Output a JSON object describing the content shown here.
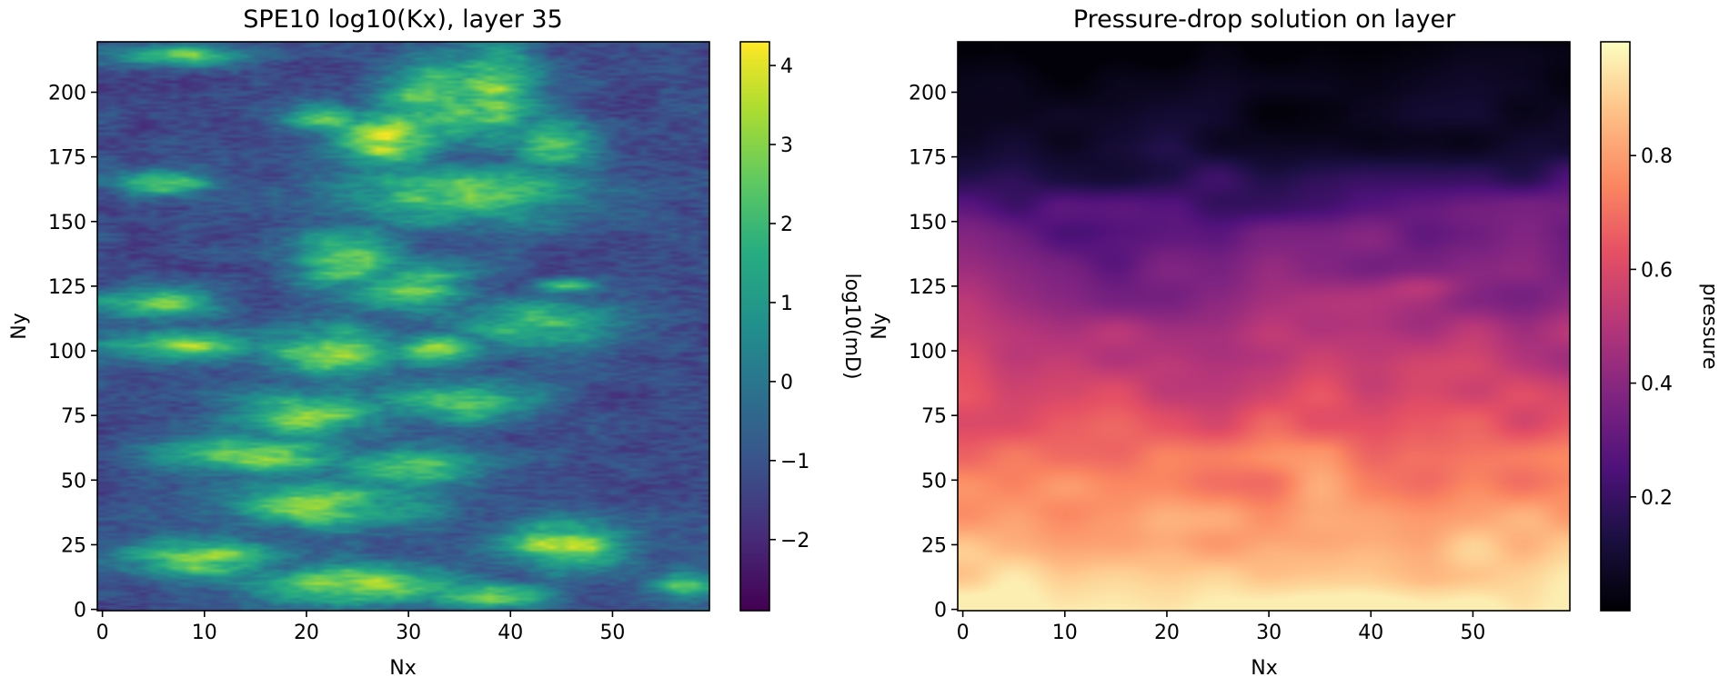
{
  "chart_data": [
    {
      "type": "heatmap",
      "title": "SPE10 log10(Kx), layer 35",
      "xlabel": "Nx",
      "ylabel": "Ny",
      "colorbar_label": "log10(mD)",
      "colormap": "viridis",
      "grid_shape": [
        220,
        60
      ],
      "xlim": [
        -0.5,
        59.5
      ],
      "ylim": [
        -0.5,
        219.5
      ],
      "x_ticks": [
        0,
        10,
        20,
        30,
        40,
        50
      ],
      "x_tick_labels": [
        "0",
        "10",
        "20",
        "30",
        "40",
        "50"
      ],
      "y_ticks": [
        0,
        25,
        50,
        75,
        100,
        125,
        150,
        175,
        200
      ],
      "y_tick_labels": [
        "0",
        "25",
        "50",
        "75",
        "100",
        "125",
        "150",
        "175",
        "200"
      ],
      "color_range": [
        -2.9,
        4.3
      ],
      "colorbar_ticks": [
        -2,
        -1,
        0,
        1,
        2,
        3,
        4
      ],
      "colorbar_tick_labels": [
        "−2",
        "−1",
        "0",
        "1",
        "2",
        "3",
        "4"
      ],
      "background_value": -1.2,
      "features": [
        {
          "x": 28,
          "y": 182,
          "peak": 4.2,
          "spread_x": 5,
          "spread_y": 12
        },
        {
          "x": 33,
          "y": 196,
          "peak": 3.2,
          "spread_x": 6,
          "spread_y": 16
        },
        {
          "x": 38,
          "y": 200,
          "peak": 2.9,
          "spread_x": 5,
          "spread_y": 20
        },
        {
          "x": 44,
          "y": 180,
          "peak": 2.8,
          "spread_x": 4,
          "spread_y": 10
        },
        {
          "x": 22,
          "y": 190,
          "peak": 2.7,
          "spread_x": 4,
          "spread_y": 6
        },
        {
          "x": 6,
          "y": 165,
          "peak": 2.6,
          "spread_x": 5,
          "spread_y": 5
        },
        {
          "x": 35,
          "y": 160,
          "peak": 2.5,
          "spread_x": 12,
          "spread_y": 12
        },
        {
          "x": 24,
          "y": 135,
          "peak": 3.0,
          "spread_x": 5,
          "spread_y": 12
        },
        {
          "x": 30,
          "y": 125,
          "peak": 2.6,
          "spread_x": 6,
          "spread_y": 10
        },
        {
          "x": 5,
          "y": 118,
          "peak": 2.6,
          "spread_x": 6,
          "spread_y": 6
        },
        {
          "x": 8,
          "y": 102,
          "peak": 2.8,
          "spread_x": 8,
          "spread_y": 6
        },
        {
          "x": 22,
          "y": 100,
          "peak": 2.9,
          "spread_x": 7,
          "spread_y": 10
        },
        {
          "x": 33,
          "y": 100,
          "peak": 3.1,
          "spread_x": 5,
          "spread_y": 6
        },
        {
          "x": 42,
          "y": 110,
          "peak": 2.3,
          "spread_x": 8,
          "spread_y": 10
        },
        {
          "x": 45,
          "y": 125,
          "peak": 2.3,
          "spread_x": 3,
          "spread_y": 3
        },
        {
          "x": 20,
          "y": 75,
          "peak": 2.6,
          "spread_x": 8,
          "spread_y": 10
        },
        {
          "x": 35,
          "y": 80,
          "peak": 2.5,
          "spread_x": 8,
          "spread_y": 8
        },
        {
          "x": 15,
          "y": 60,
          "peak": 2.8,
          "spread_x": 10,
          "spread_y": 8
        },
        {
          "x": 30,
          "y": 55,
          "peak": 2.6,
          "spread_x": 8,
          "spread_y": 8
        },
        {
          "x": 22,
          "y": 40,
          "peak": 2.7,
          "spread_x": 10,
          "spread_y": 10
        },
        {
          "x": 45,
          "y": 25,
          "peak": 3.4,
          "spread_x": 6,
          "spread_y": 10
        },
        {
          "x": 10,
          "y": 20,
          "peak": 3.0,
          "spread_x": 8,
          "spread_y": 8
        },
        {
          "x": 25,
          "y": 10,
          "peak": 3.1,
          "spread_x": 10,
          "spread_y": 8
        },
        {
          "x": 38,
          "y": 5,
          "peak": 2.8,
          "spread_x": 6,
          "spread_y": 5
        },
        {
          "x": 57,
          "y": 10,
          "peak": 2.6,
          "spread_x": 3,
          "spread_y": 6
        },
        {
          "x": 8,
          "y": 214,
          "peak": 2.5,
          "spread_x": 6,
          "spread_y": 4
        }
      ]
    },
    {
      "type": "heatmap",
      "title": "Pressure-drop solution on layer",
      "xlabel": "Nx",
      "ylabel": "Ny",
      "colorbar_label": "pressure",
      "colormap": "magma",
      "grid_shape": [
        220,
        60
      ],
      "xlim": [
        -0.5,
        59.5
      ],
      "ylim": [
        -0.5,
        219.5
      ],
      "x_ticks": [
        0,
        10,
        20,
        30,
        40,
        50
      ],
      "x_tick_labels": [
        "0",
        "10",
        "20",
        "30",
        "40",
        "50"
      ],
      "y_ticks": [
        0,
        25,
        50,
        75,
        100,
        125,
        150,
        175,
        200
      ],
      "y_tick_labels": [
        "0",
        "25",
        "50",
        "75",
        "100",
        "125",
        "150",
        "175",
        "200"
      ],
      "color_range": [
        0.0,
        1.0
      ],
      "colorbar_ticks": [
        0.2,
        0.4,
        0.6,
        0.8
      ],
      "colorbar_tick_labels": [
        "0.2",
        "0.4",
        "0.6",
        "0.8"
      ],
      "value_profile_by_row": [
        {
          "y": 0,
          "value": 0.97
        },
        {
          "y": 20,
          "value": 0.9
        },
        {
          "y": 40,
          "value": 0.8
        },
        {
          "y": 60,
          "value": 0.7
        },
        {
          "y": 80,
          "value": 0.62
        },
        {
          "y": 100,
          "value": 0.52
        },
        {
          "y": 120,
          "value": 0.42
        },
        {
          "y": 140,
          "value": 0.34
        },
        {
          "y": 160,
          "value": 0.22
        },
        {
          "y": 180,
          "value": 0.12
        },
        {
          "y": 200,
          "value": 0.05
        },
        {
          "y": 219,
          "value": 0.01
        }
      ],
      "features": [
        {
          "x": 45,
          "y": 125,
          "delta": 0.1,
          "spread_x": 4,
          "spread_y": 5
        },
        {
          "x": 35,
          "y": 180,
          "delta": -0.08,
          "spread_x": 10,
          "spread_y": 15
        }
      ]
    }
  ]
}
